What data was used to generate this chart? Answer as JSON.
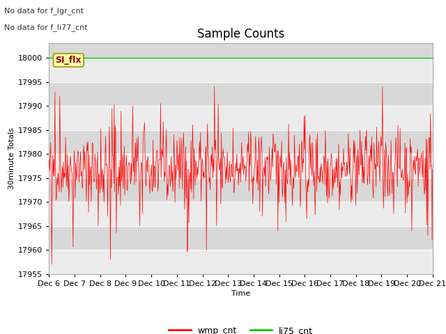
{
  "title": "Sample Counts",
  "xlabel": "Time",
  "ylabel": "30minute Totals",
  "no_data_texts": [
    "No data for f_lgr_cnt",
    "No data for f_li77_cnt"
  ],
  "annotation_text": "SI_flx",
  "ylim": [
    17955,
    18003
  ],
  "yticks": [
    17955,
    17960,
    17965,
    17970,
    17975,
    17980,
    17985,
    17990,
    17995,
    18000
  ],
  "xtick_labels": [
    "Dec 6",
    "Dec 7",
    "Dec 8",
    "Dec 9",
    "Dec 10",
    "Dec 11",
    "Dec 12",
    "Dec 13",
    "Dec 14",
    "Dec 15",
    "Dec 16",
    "Dec 17",
    "Dec 18",
    "Dec 19",
    "Dec 20",
    "Dec 21"
  ],
  "num_days": 15,
  "wmp_color": "#FF0000",
  "li75_color": "#00CC00",
  "si_flx_value": 18000,
  "background_color": "#FFFFFF",
  "plot_bg_light": "#EBEBEB",
  "plot_bg_dark": "#D8D8D8",
  "grid_color": "#FFFFFF",
  "legend_entries": [
    "wmp_cnt",
    "li75_cnt"
  ],
  "seed": 42,
  "base_value": 17977,
  "title_fontsize": 12,
  "axis_fontsize": 8,
  "tick_fontsize": 8,
  "nodata_fontsize": 8
}
